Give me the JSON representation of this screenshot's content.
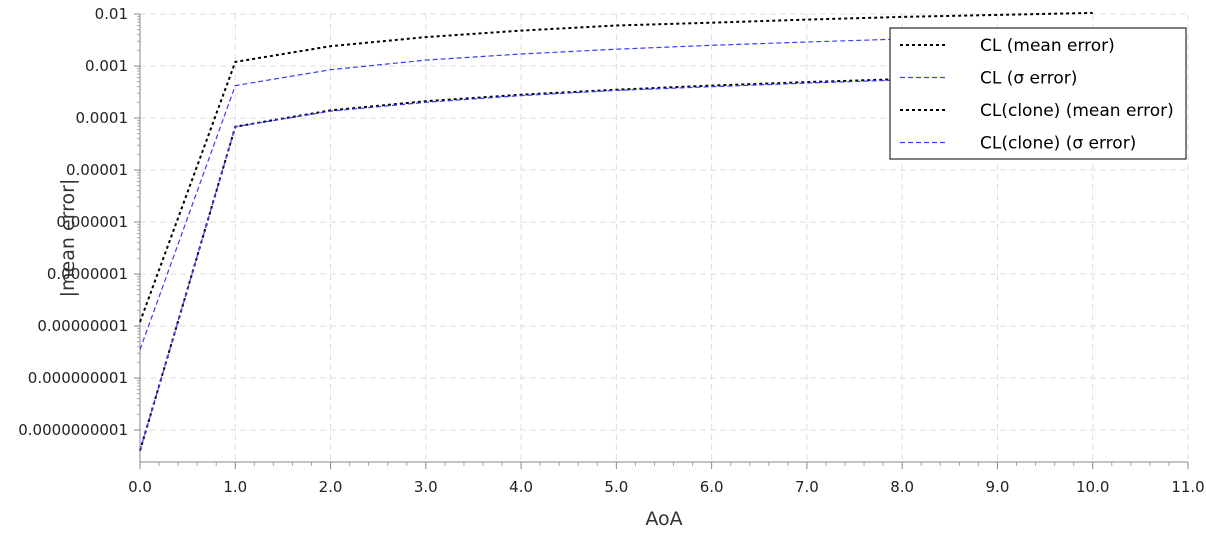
{
  "chart_data": {
    "type": "line",
    "xlabel": "AoA",
    "ylabel": "|mean error|",
    "x_scale": "linear",
    "y_scale": "log",
    "xlim": [
      0,
      11
    ],
    "ylim": [
      1e-10,
      0.01
    ],
    "x_ticks": [
      "0.0",
      "1.0",
      "2.0",
      "3.0",
      "4.0",
      "5.0",
      "6.0",
      "7.0",
      "8.0",
      "9.0",
      "10.0",
      "11.0"
    ],
    "y_ticks": [
      "0.01",
      "0.001",
      "0.0001",
      "0.00001",
      "0.000001",
      "0.0000001",
      "0.00000001",
      "0.000000001",
      "0.0000000001"
    ],
    "grid": true,
    "legend_position": "top-right",
    "series": [
      {
        "name": "CL (mean error)",
        "color": "#000000",
        "style": "dotted",
        "x": [
          0,
          1,
          2,
          3,
          4,
          5,
          6,
          7,
          8,
          9,
          10
        ],
        "y": [
          1.2e-08,
          0.0012,
          0.0024,
          0.0036,
          0.0048,
          0.006,
          0.0068,
          0.0078,
          0.0088,
          0.0096,
          0.0105
        ]
      },
      {
        "name": "CL (σ error)",
        "color": "#3a3aff",
        "style": "dashed",
        "x": [
          0,
          1,
          2,
          3,
          4,
          5,
          6,
          7,
          8,
          9,
          10
        ],
        "y": [
          3.5e-09,
          0.00042,
          0.00085,
          0.0013,
          0.0017,
          0.0021,
          0.0025,
          0.0029,
          0.0033,
          0.0037,
          0.004
        ]
      },
      {
        "name": "CL(clone) (mean error)",
        "color": "#000000",
        "style": "dotted",
        "x": [
          0,
          1,
          2,
          3,
          4,
          5,
          6,
          7,
          8,
          9,
          10
        ],
        "y": [
          4e-11,
          6.8e-05,
          0.00014,
          0.00021,
          0.00028,
          0.00035,
          0.00042,
          0.00049,
          0.00056,
          0.00063,
          0.0007
        ]
      },
      {
        "name": "CL(clone) (σ error)",
        "color": "#3a3aff",
        "style": "dashed",
        "x": [
          0,
          1,
          2,
          3,
          4,
          5,
          6,
          7,
          8,
          9,
          10
        ],
        "y": [
          4e-11,
          6.8e-05,
          0.000135,
          0.0002,
          0.00027,
          0.00034,
          0.0004,
          0.00047,
          0.00054,
          0.00061,
          0.00068
        ]
      }
    ]
  }
}
